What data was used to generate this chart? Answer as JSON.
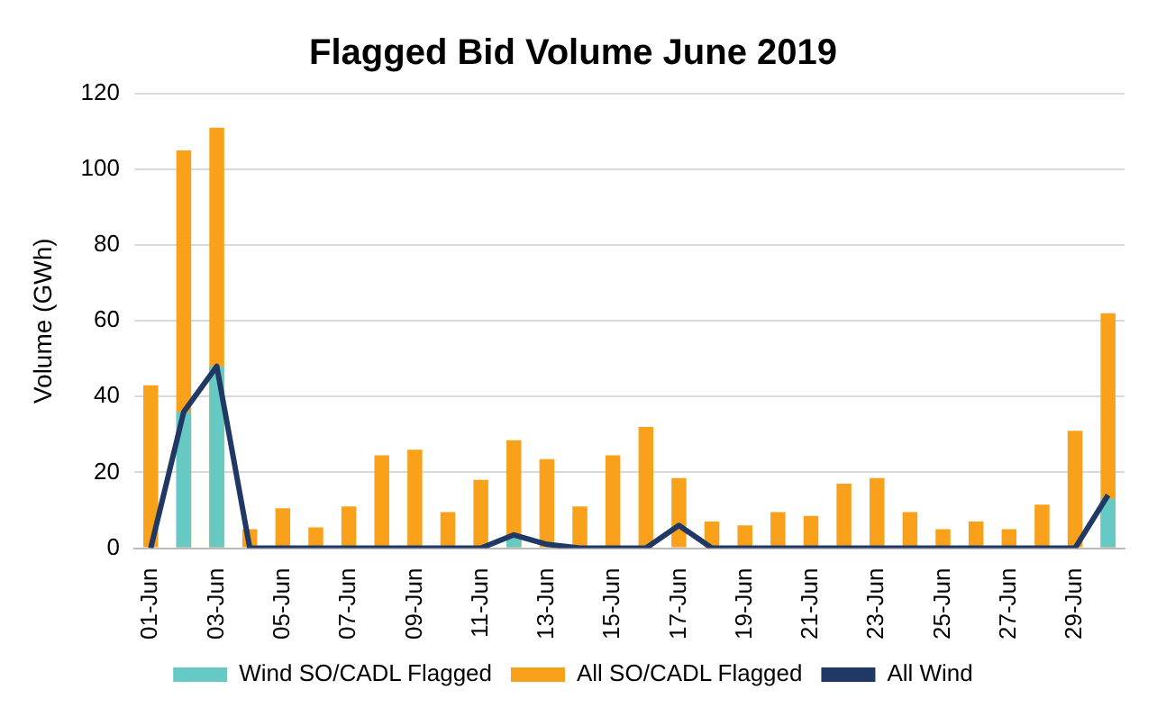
{
  "chart_data": {
    "type": "bar",
    "title": "Flagged Bid Volume June 2019",
    "ylabel": "Volume (GWh)",
    "categories": [
      "01-Jun",
      null,
      "03-Jun",
      null,
      "05-Jun",
      null,
      "07-Jun",
      null,
      "09-Jun",
      null,
      "11-Jun",
      null,
      "13-Jun",
      null,
      "15-Jun",
      null,
      "17-Jun",
      null,
      "19-Jun",
      null,
      "21-Jun",
      null,
      "23-Jun",
      null,
      "25-Jun",
      null,
      "27-Jun",
      null,
      "29-Jun",
      null
    ],
    "series": [
      {
        "name": "Wind SO/CADL Flagged",
        "type": "bar",
        "color": "#66c9c4",
        "values": [
          0,
          36,
          48,
          0,
          0,
          0,
          0,
          0,
          0,
          0,
          0,
          3,
          0,
          0,
          0,
          0,
          0,
          0,
          0,
          0,
          0,
          0,
          0,
          0,
          0,
          0,
          0,
          0,
          0,
          13
        ]
      },
      {
        "name": "All SO/CADL Flagged",
        "color": "#f9a11b",
        "values": [
          43,
          105,
          111,
          5,
          10.5,
          5.5,
          11,
          24.5,
          26,
          9.5,
          18,
          28.5,
          23.5,
          11,
          24.5,
          32,
          18.5,
          7,
          6,
          9.5,
          8.5,
          17,
          18.5,
          9.5,
          5,
          7,
          5,
          11.5,
          31,
          62
        ]
      },
      {
        "name": "All Wind",
        "type": "line",
        "color": "#1f3864",
        "values": [
          0,
          36,
          48,
          0,
          0,
          0,
          0,
          0,
          0,
          0,
          0,
          3.5,
          1,
          0,
          0,
          0,
          6,
          0,
          0,
          0,
          0,
          0,
          0,
          0,
          0,
          0,
          0,
          0,
          0,
          14
        ]
      }
    ],
    "ylim": [
      0,
      120
    ],
    "yticks": [
      0,
      20,
      40,
      60,
      80,
      100,
      120
    ],
    "grid": "y",
    "legend": "bottom",
    "marker": "none"
  }
}
